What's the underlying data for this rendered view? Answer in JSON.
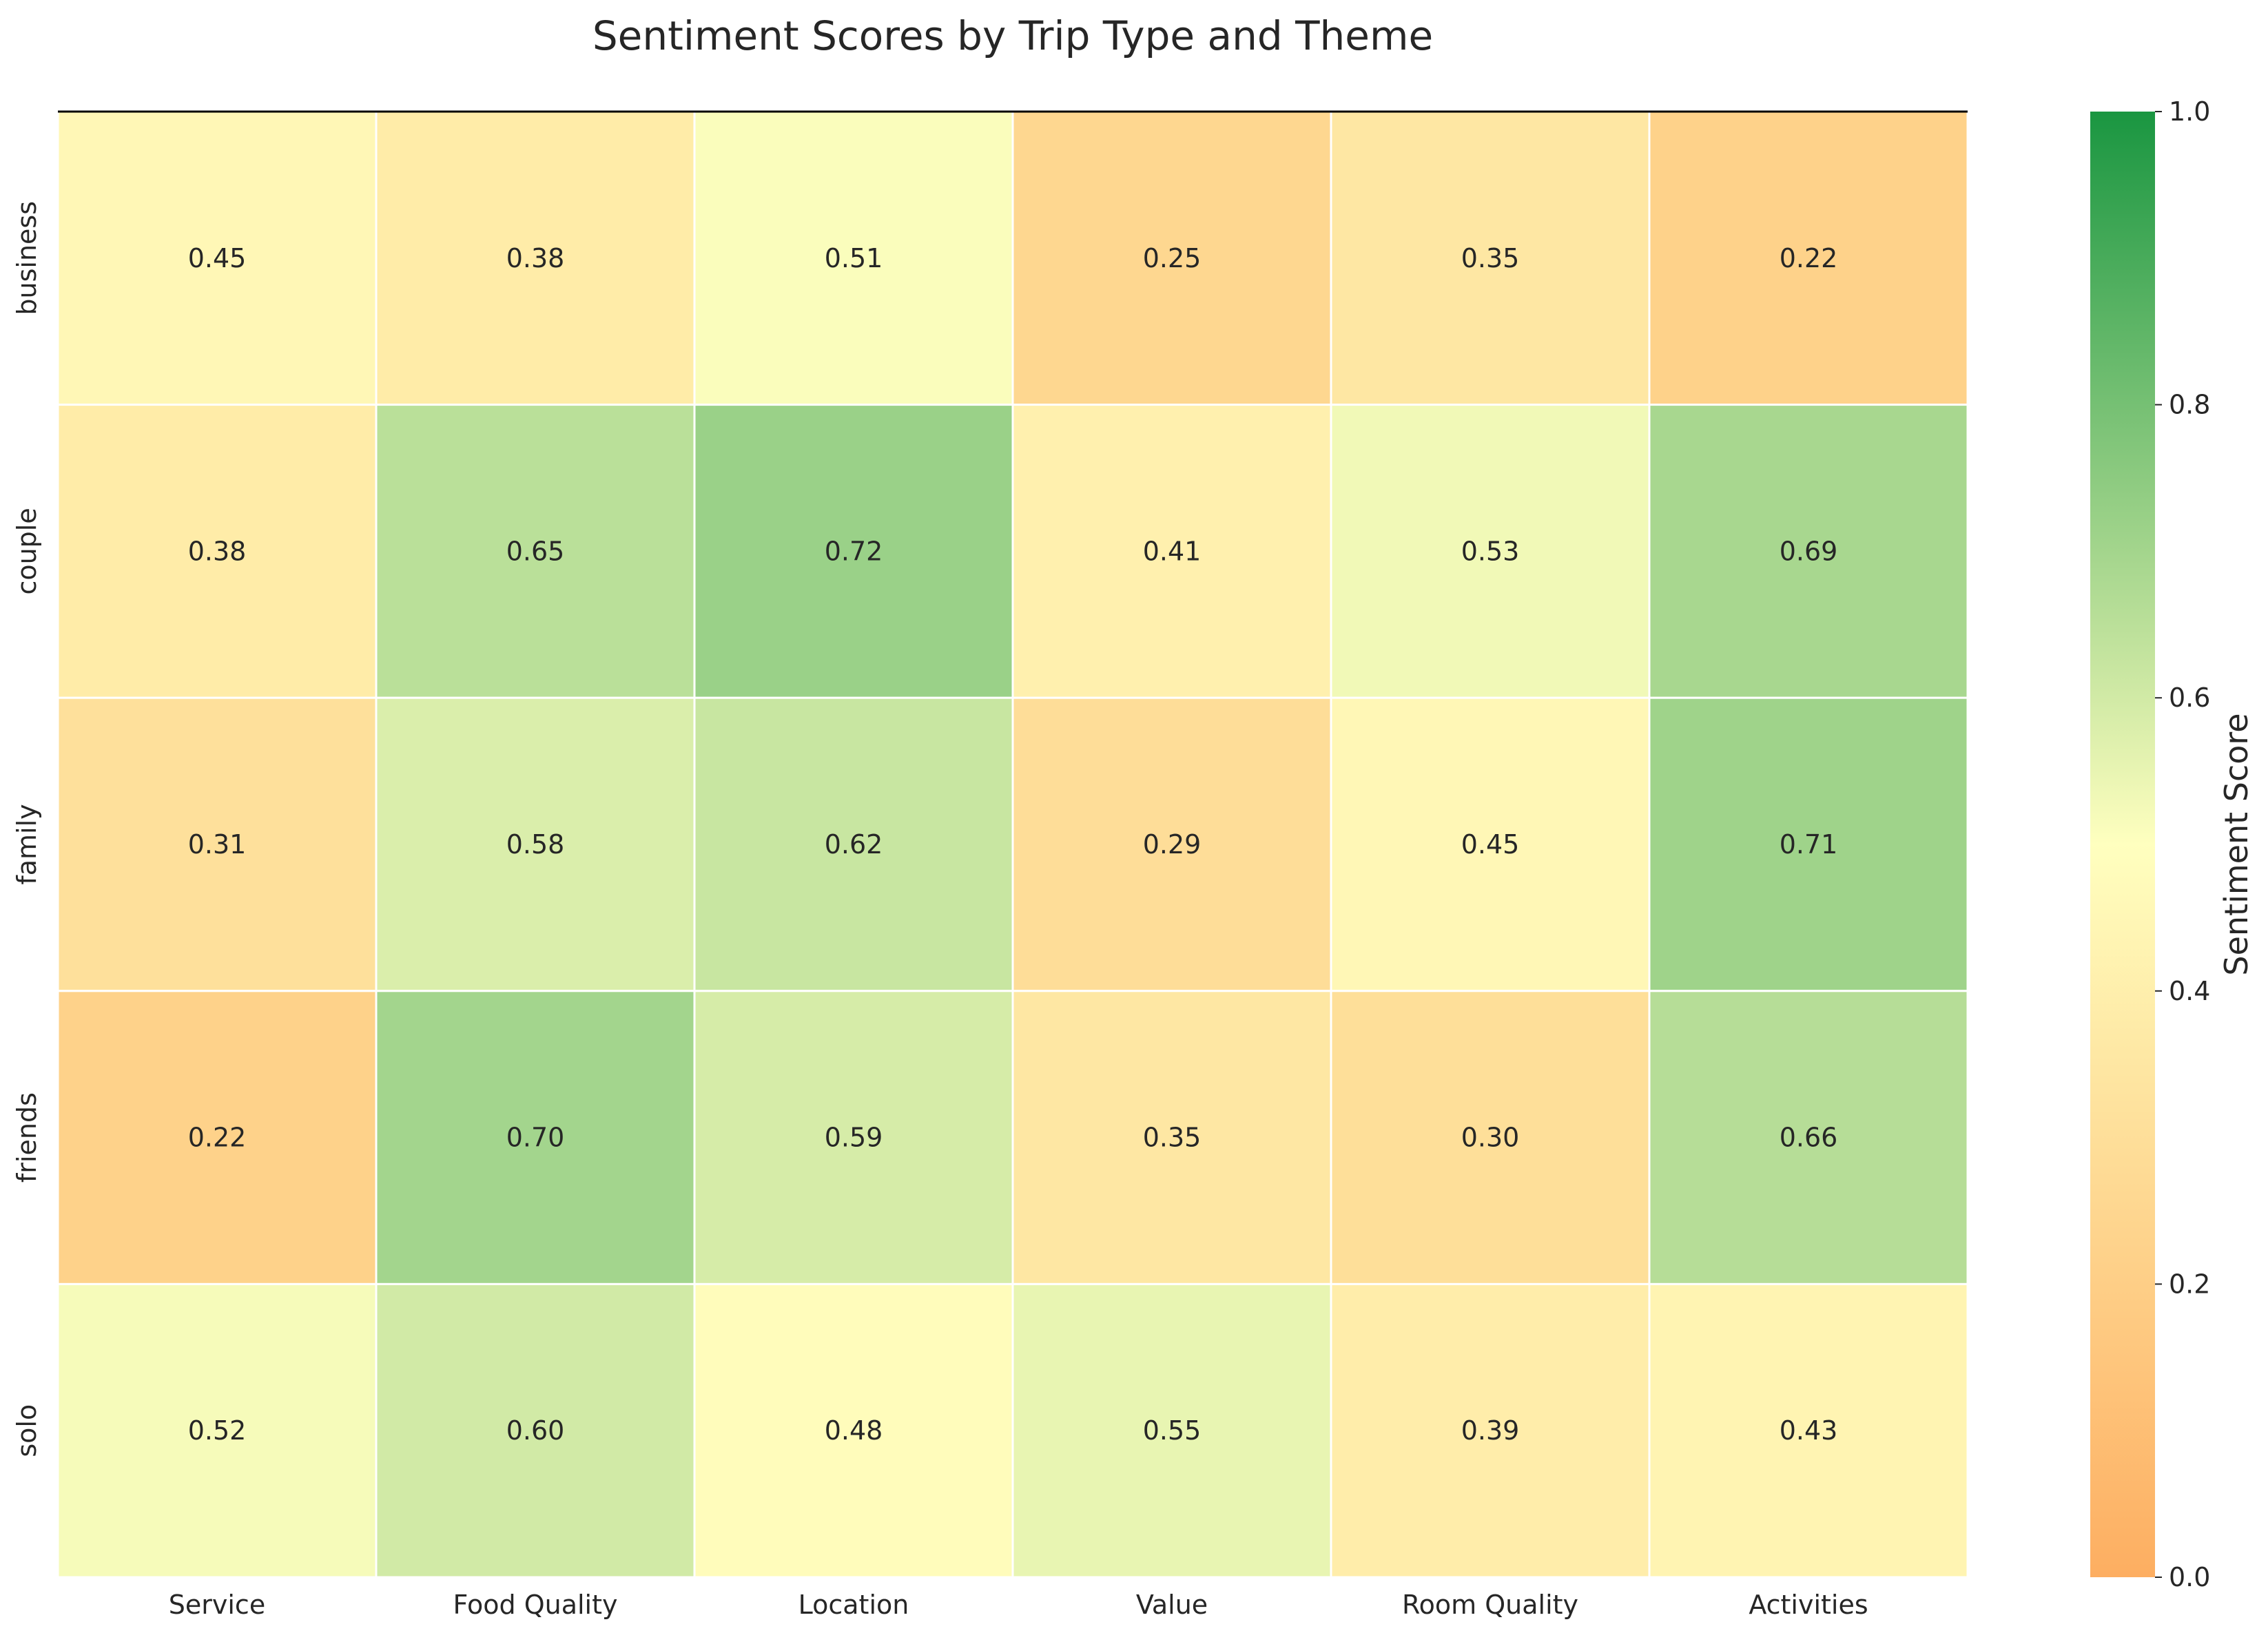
{
  "chart_data": {
    "type": "heatmap",
    "title": "Sentiment Scores by Trip Type and Theme",
    "xlabel": "",
    "ylabel": "",
    "columns": [
      "Service",
      "Food Quality",
      "Location",
      "Value",
      "Room Quality",
      "Activities"
    ],
    "rows": [
      "business",
      "couple",
      "family",
      "friends",
      "solo"
    ],
    "values": [
      [
        0.45,
        0.38,
        0.51,
        0.25,
        0.35,
        0.22
      ],
      [
        0.38,
        0.65,
        0.72,
        0.41,
        0.53,
        0.69
      ],
      [
        0.31,
        0.58,
        0.62,
        0.29,
        0.45,
        0.71
      ],
      [
        0.22,
        0.7,
        0.59,
        0.35,
        0.3,
        0.66
      ],
      [
        0.52,
        0.6,
        0.48,
        0.55,
        0.39,
        0.43
      ]
    ],
    "value_labels": [
      [
        "0.45",
        "0.38",
        "0.51",
        "0.25",
        "0.35",
        "0.22"
      ],
      [
        "0.38",
        "0.65",
        "0.72",
        "0.41",
        "0.53",
        "0.69"
      ],
      [
        "0.31",
        "0.58",
        "0.62",
        "0.29",
        "0.45",
        "0.71"
      ],
      [
        "0.22",
        "0.70",
        "0.59",
        "0.35",
        "0.30",
        "0.66"
      ],
      [
        "0.52",
        "0.60",
        "0.48",
        "0.55",
        "0.39",
        "0.43"
      ]
    ],
    "colorbar": {
      "label": "Sentiment Score",
      "range": [
        0,
        1
      ],
      "ticks": [
        0.0,
        0.2,
        0.4,
        0.6,
        0.8,
        1.0
      ],
      "tick_labels": [
        "0.0",
        "0.2",
        "0.4",
        "0.6",
        "0.8",
        "1.0"
      ],
      "colors": [
        "#fdae61",
        "#ffffbf",
        "#1a9641"
      ]
    },
    "cell_border_color": "#ffffff",
    "top_border": true
  }
}
